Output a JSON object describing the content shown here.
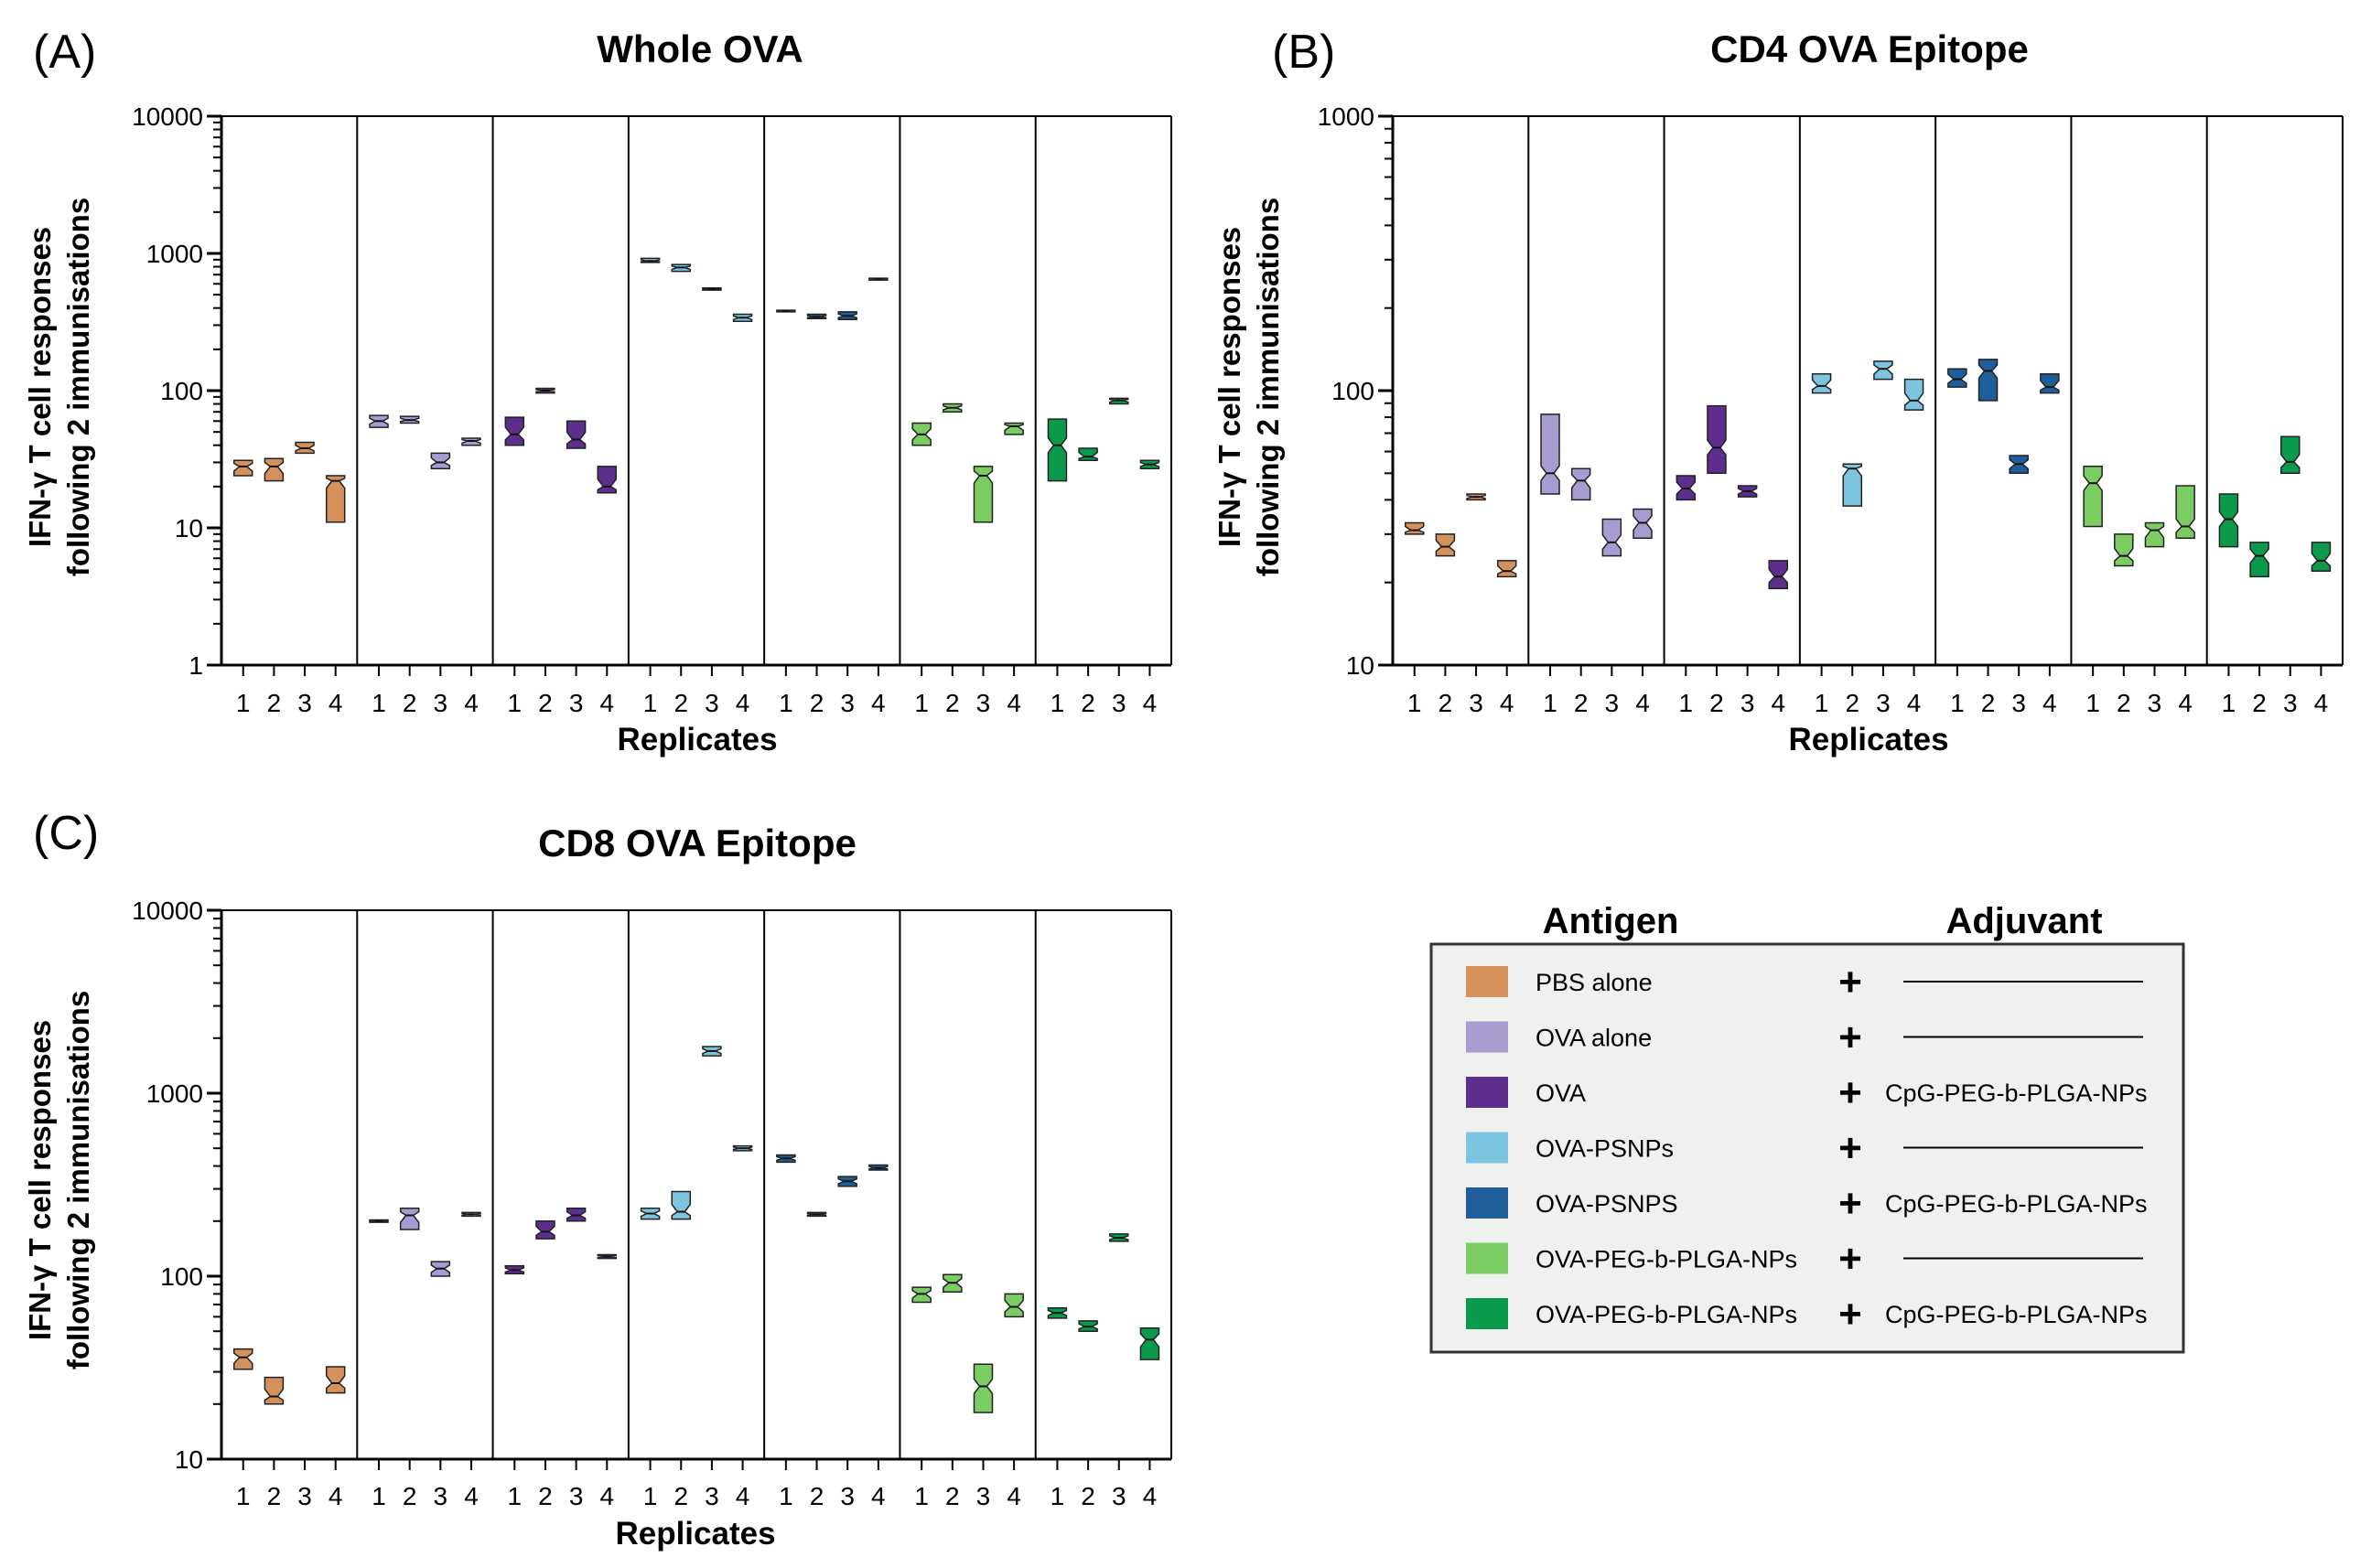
{
  "figure": {
    "replicate_labels": [
      "1",
      "2",
      "3",
      "4"
    ],
    "x_axis_label": "Replicates",
    "y_axis_label_line1": "IFN-γ T cell responses",
    "y_axis_label_line2": "following 2 immunisations"
  },
  "legend": {
    "antigen_header": "Antigen",
    "adjuvant_header": "Adjuvant",
    "plus_symbol": "+",
    "entries": [
      {
        "antigen": "PBS alone",
        "adjuvant": "",
        "color": "#D4915C"
      },
      {
        "antigen": "OVA alone",
        "adjuvant": "",
        "color": "#A89BD0"
      },
      {
        "antigen": "OVA",
        "adjuvant": "CpG-PEG-b-PLGA-NPs",
        "color": "#5E2E8F"
      },
      {
        "antigen": "OVA-PSNPs",
        "adjuvant": "",
        "color": "#7DC4DF"
      },
      {
        "antigen": "OVA-PSNPS",
        "adjuvant": "CpG-PEG-b-PLGA-NPs",
        "color": "#1E5F9B"
      },
      {
        "antigen": "OVA-PEG-b-PLGA-NPs",
        "adjuvant": "",
        "color": "#7ACC63"
      },
      {
        "antigen": "OVA-PEG-b-PLGA-NPs",
        "adjuvant": "CpG-PEG-b-PLGA-NPs",
        "color": "#0B9A4C"
      }
    ]
  },
  "chart_data": [
    {
      "type": "box",
      "panel": "(A)",
      "title": "Whole OVA",
      "yscale": "log",
      "ylim": [
        1,
        10000
      ],
      "yticks": [
        "1",
        "10",
        "100",
        "1000",
        "10000"
      ],
      "groups": [
        "PBS alone",
        "OVA alone",
        "OVA + CpG",
        "OVA-PSNPs",
        "OVA-PSNPS + CpG",
        "OVA-PEG-b-PLGA-NPs",
        "OVA-PEG-b-PLGA-NPs + CpG"
      ],
      "series": [
        {
          "name": "PBS alone",
          "boxes": [
            [
              24,
              28,
              31
            ],
            [
              22,
              28,
              32
            ],
            [
              35,
              38,
              42
            ],
            [
              11,
              22,
              24
            ]
          ]
        },
        {
          "name": "OVA alone",
          "boxes": [
            [
              54,
              60,
              66
            ],
            [
              58,
              61,
              65
            ],
            [
              27,
              30,
              35
            ],
            [
              40,
              43,
              45
            ]
          ]
        },
        {
          "name": "OVA + CpG",
          "boxes": [
            [
              40,
              48,
              64
            ],
            [
              96,
              100,
              104
            ],
            [
              38,
              44,
              60
            ],
            [
              18,
              20,
              28
            ]
          ]
        },
        {
          "name": "OVA-PSNPs",
          "boxes": [
            [
              860,
              880,
              920
            ],
            [
              740,
              790,
              830
            ],
            [
              540,
              550,
              560
            ],
            [
              320,
              340,
              360
            ]
          ]
        },
        {
          "name": "OVA-PSNPS + CpG",
          "boxes": [
            [
              375,
              380,
              385
            ],
            [
              335,
              345,
              360
            ],
            [
              330,
              350,
              375
            ],
            [
              640,
              650,
              660
            ]
          ]
        },
        {
          "name": "OVA-PEG-b-PLGA-NPs",
          "boxes": [
            [
              40,
              48,
              58
            ],
            [
              70,
              75,
              80
            ],
            [
              11,
              24,
              28
            ],
            [
              48,
              55,
              58
            ]
          ]
        },
        {
          "name": "OVA-PEG-b-PLGA-NPs + CpG",
          "boxes": [
            [
              22,
              40,
              62
            ],
            [
              31,
              33,
              38
            ],
            [
              80,
              85,
              88
            ],
            [
              27,
              29,
              31
            ]
          ]
        }
      ]
    },
    {
      "type": "box",
      "panel": "(B)",
      "title": "CD4 OVA Epitope",
      "yscale": "log",
      "ylim": [
        10,
        1000
      ],
      "yticks": [
        "10",
        "100",
        "1000"
      ],
      "groups": [
        "PBS alone",
        "OVA alone",
        "OVA + CpG",
        "OVA-PSNPs",
        "OVA-PSNPS + CpG",
        "OVA-PEG-b-PLGA-NPs",
        "OVA-PEG-b-PLGA-NPs + CpG"
      ],
      "series": [
        {
          "name": "PBS alone",
          "boxes": [
            [
              30,
              31,
              33
            ],
            [
              25,
              27,
              30
            ],
            [
              40,
              41,
              42
            ],
            [
              21,
              22,
              24
            ]
          ]
        },
        {
          "name": "OVA alone",
          "boxes": [
            [
              42,
              50,
              82
            ],
            [
              40,
              47,
              52
            ],
            [
              25,
              28,
              34
            ],
            [
              29,
              33,
              37
            ]
          ]
        },
        {
          "name": "OVA + CpG",
          "boxes": [
            [
              40,
              44,
              49
            ],
            [
              50,
              62,
              88
            ],
            [
              41,
              43,
              45
            ],
            [
              19,
              21,
              24
            ]
          ]
        },
        {
          "name": "OVA-PSNPs",
          "boxes": [
            [
              98,
              104,
              115
            ],
            [
              38,
              52,
              54
            ],
            [
              110,
              120,
              128
            ],
            [
              85,
              92,
              110
            ]
          ]
        },
        {
          "name": "OVA-PSNPS + CpG",
          "boxes": [
            [
              103,
              110,
              120
            ],
            [
              92,
              118,
              130
            ],
            [
              50,
              54,
              58
            ],
            [
              98,
              103,
              115
            ]
          ]
        },
        {
          "name": "OVA-PEG-b-PLGA-NPs",
          "boxes": [
            [
              32,
              46,
              53
            ],
            [
              23,
              25,
              30
            ],
            [
              27,
              31,
              33
            ],
            [
              29,
              32,
              45
            ]
          ]
        },
        {
          "name": "OVA-PEG-b-PLGA-NPs + CpG",
          "boxes": [
            [
              27,
              34,
              42
            ],
            [
              21,
              25,
              28
            ],
            [
              50,
              55,
              68
            ],
            [
              22,
              24,
              28
            ]
          ]
        }
      ]
    },
    {
      "type": "box",
      "panel": "(C)",
      "title": "CD8  OVA Epitope",
      "yscale": "log",
      "ylim": [
        10,
        10000
      ],
      "yticks": [
        "10",
        "100",
        "1000",
        "10000"
      ],
      "groups": [
        "PBS alone",
        "OVA alone",
        "OVA + CpG",
        "OVA-PSNPs",
        "OVA-PSNPS + CpG",
        "OVA-PEG-b-PLGA-NPs",
        "OVA-PEG-b-PLGA-NPs + CpG"
      ],
      "series": [
        {
          "name": "PBS alone",
          "boxes": [
            [
              31,
              36,
              40
            ],
            [
              20,
              22,
              28
            ],
            null,
            [
              23,
              26,
              32
            ]
          ]
        },
        {
          "name": "OVA alone",
          "boxes": [
            [
              197,
              200,
              203
            ],
            [
              180,
              215,
              235
            ],
            [
              100,
              110,
              120
            ],
            [
              213,
              218,
              223
            ]
          ]
        },
        {
          "name": "OVA + CpG",
          "boxes": [
            [
              103,
              108,
              114
            ],
            [
              160,
              175,
              200
            ],
            [
              200,
              215,
              235
            ],
            [
              125,
              128,
              131
            ]
          ]
        },
        {
          "name": "OVA-PSNPs",
          "boxes": [
            [
              205,
              220,
              235
            ],
            [
              205,
              225,
              290
            ],
            [
              1600,
              1700,
              1800
            ],
            [
              485,
              500,
              515
            ]
          ]
        },
        {
          "name": "OVA-PSNPS + CpG",
          "boxes": [
            [
              420,
              440,
              460
            ],
            [
              213,
              218,
              223
            ],
            [
              310,
              330,
              350
            ],
            [
              380,
              390,
              405
            ]
          ]
        },
        {
          "name": "OVA-PEG-b-PLGA-NPs",
          "boxes": [
            [
              72,
              80,
              87
            ],
            [
              82,
              92,
              102
            ],
            [
              18,
              25,
              33
            ],
            [
              60,
              68,
              80
            ]
          ]
        },
        {
          "name": "OVA-PEG-b-PLGA-NPs + CpG",
          "boxes": [
            [
              59,
              63,
              67
            ],
            [
              50,
              53,
              57
            ],
            [
              155,
              162,
              170
            ],
            [
              35,
              45,
              52
            ]
          ]
        }
      ]
    }
  ]
}
